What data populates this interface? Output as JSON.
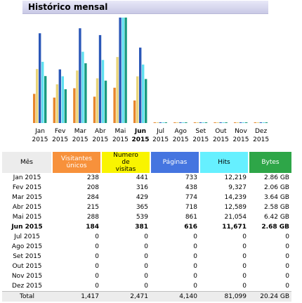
{
  "title": "Histórico mensal",
  "colors": {
    "visitors": "#e8862b",
    "visits": "#e8d47a",
    "pages": "#2b57b8",
    "hits": "#5fe0f0",
    "bytes": "#189a7e"
  },
  "chart_data": {
    "type": "bar",
    "categories": [
      {
        "month": "Jan",
        "year": "2015"
      },
      {
        "month": "Fev",
        "year": "2015"
      },
      {
        "month": "Mar",
        "year": "2015"
      },
      {
        "month": "Abr",
        "year": "2015"
      },
      {
        "month": "Mai",
        "year": "2015"
      },
      {
        "month": "Jun",
        "year": "2015",
        "current": true
      },
      {
        "month": "Jul",
        "year": "2015"
      },
      {
        "month": "Ago",
        "year": "2015"
      },
      {
        "month": "Set",
        "year": "2015"
      },
      {
        "month": "Out",
        "year": "2015"
      },
      {
        "month": "Nov",
        "year": "2015"
      },
      {
        "month": "Dez",
        "year": "2015"
      }
    ],
    "series": [
      {
        "name": "Visitantes únicos",
        "values": [
          238,
          208,
          284,
          215,
          288,
          184,
          0,
          0,
          0,
          0,
          0,
          0
        ]
      },
      {
        "name": "Numero de visitas",
        "values": [
          441,
          316,
          429,
          365,
          539,
          381,
          0,
          0,
          0,
          0,
          0,
          0
        ]
      },
      {
        "name": "Páginas",
        "values": [
          733,
          438,
          774,
          718,
          861,
          616,
          0,
          0,
          0,
          0,
          0,
          0
        ]
      },
      {
        "name": "Hits",
        "values": [
          12219,
          9327,
          14239,
          12589,
          21054,
          11671,
          0,
          0,
          0,
          0,
          0,
          0
        ]
      },
      {
        "name": "Bytes",
        "unit": "GB",
        "values": [
          2.86,
          2.06,
          3.64,
          2.58,
          6.42,
          2.68,
          0,
          0,
          0,
          0,
          0,
          0
        ]
      }
    ]
  },
  "table": {
    "headers": {
      "month": "Mês",
      "visitors": "Visitantes únicos",
      "visits": "Numero de visitas",
      "pages": "Páginas",
      "hits": "Hits",
      "bytes": "Bytes"
    },
    "rows": [
      {
        "month": "Jan 2015",
        "visitors": "238",
        "visits": "441",
        "pages": "733",
        "hits": "12,219",
        "bytes": "2.86 GB"
      },
      {
        "month": "Fev 2015",
        "visitors": "208",
        "visits": "316",
        "pages": "438",
        "hits": "9,327",
        "bytes": "2.06 GB"
      },
      {
        "month": "Mar 2015",
        "visitors": "284",
        "visits": "429",
        "pages": "774",
        "hits": "14,239",
        "bytes": "3.64 GB"
      },
      {
        "month": "Abr 2015",
        "visitors": "215",
        "visits": "365",
        "pages": "718",
        "hits": "12,589",
        "bytes": "2.58 GB"
      },
      {
        "month": "Mai 2015",
        "visitors": "288",
        "visits": "539",
        "pages": "861",
        "hits": "21,054",
        "bytes": "6.42 GB"
      },
      {
        "month": "Jun 2015",
        "visitors": "184",
        "visits": "381",
        "pages": "616",
        "hits": "11,671",
        "bytes": "2.68 GB",
        "current": true
      },
      {
        "month": "Jul 2015",
        "visitors": "0",
        "visits": "0",
        "pages": "0",
        "hits": "0",
        "bytes": "0"
      },
      {
        "month": "Ago 2015",
        "visitors": "0",
        "visits": "0",
        "pages": "0",
        "hits": "0",
        "bytes": "0"
      },
      {
        "month": "Set 2015",
        "visitors": "0",
        "visits": "0",
        "pages": "0",
        "hits": "0",
        "bytes": "0"
      },
      {
        "month": "Out 2015",
        "visitors": "0",
        "visits": "0",
        "pages": "0",
        "hits": "0",
        "bytes": "0"
      },
      {
        "month": "Nov 2015",
        "visitors": "0",
        "visits": "0",
        "pages": "0",
        "hits": "0",
        "bytes": "0"
      },
      {
        "month": "Dez 2015",
        "visitors": "0",
        "visits": "0",
        "pages": "0",
        "hits": "0",
        "bytes": "0"
      }
    ],
    "total": {
      "month": "Total",
      "visitors": "1,417",
      "visits": "2,471",
      "pages": "4,140",
      "hits": "81,099",
      "bytes": "20.24 GB"
    }
  }
}
